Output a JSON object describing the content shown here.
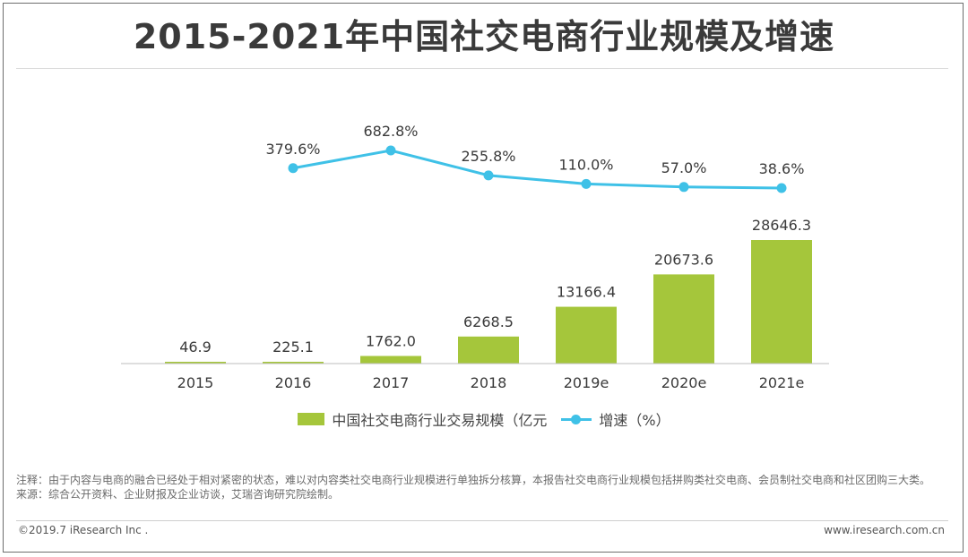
{
  "title": "2015-2021年中国社交电商行业规模及增速",
  "chart_data": {
    "type": "bar",
    "categories": [
      "2015",
      "2016",
      "2017",
      "2018",
      "2019e",
      "2020e",
      "2021e"
    ],
    "series": [
      {
        "name": "中国社交电商行业交易规模（亿元",
        "type": "bar",
        "values": [
          46.9,
          225.1,
          1762.0,
          6268.5,
          13166.4,
          20673.6,
          28646.3
        ],
        "labels": [
          "46.9",
          "225.1",
          "1762.0",
          "6268.5",
          "13166.4",
          "20673.6",
          "28646.3"
        ],
        "color": "#a5c63b"
      },
      {
        "name": "增速（%）",
        "type": "line",
        "values": [
          null,
          379.6,
          682.8,
          255.8,
          110.0,
          57.0,
          38.6
        ],
        "labels": [
          "",
          "379.6%",
          "682.8%",
          "255.8%",
          "110.0%",
          "57.0%",
          "38.6%"
        ],
        "color": "#3fc1e7"
      }
    ],
    "legend_position": "bottom",
    "grid": false
  },
  "notes": {
    "note": "注释：由于内容与电商的融合已经处于相对紧密的状态，难以对内容类社交电商行业规模进行单独拆分核算，本报告社交电商行业规模包括拼购类社交电商、会员制社交电商和社区团购三大类。",
    "source": "来源：综合公开资料、企业财报及企业访谈，艾瑞咨询研究院绘制。"
  },
  "footer": {
    "copyright": "©2019.7 iResearch Inc .",
    "website": "www.iresearch.com.cn"
  }
}
